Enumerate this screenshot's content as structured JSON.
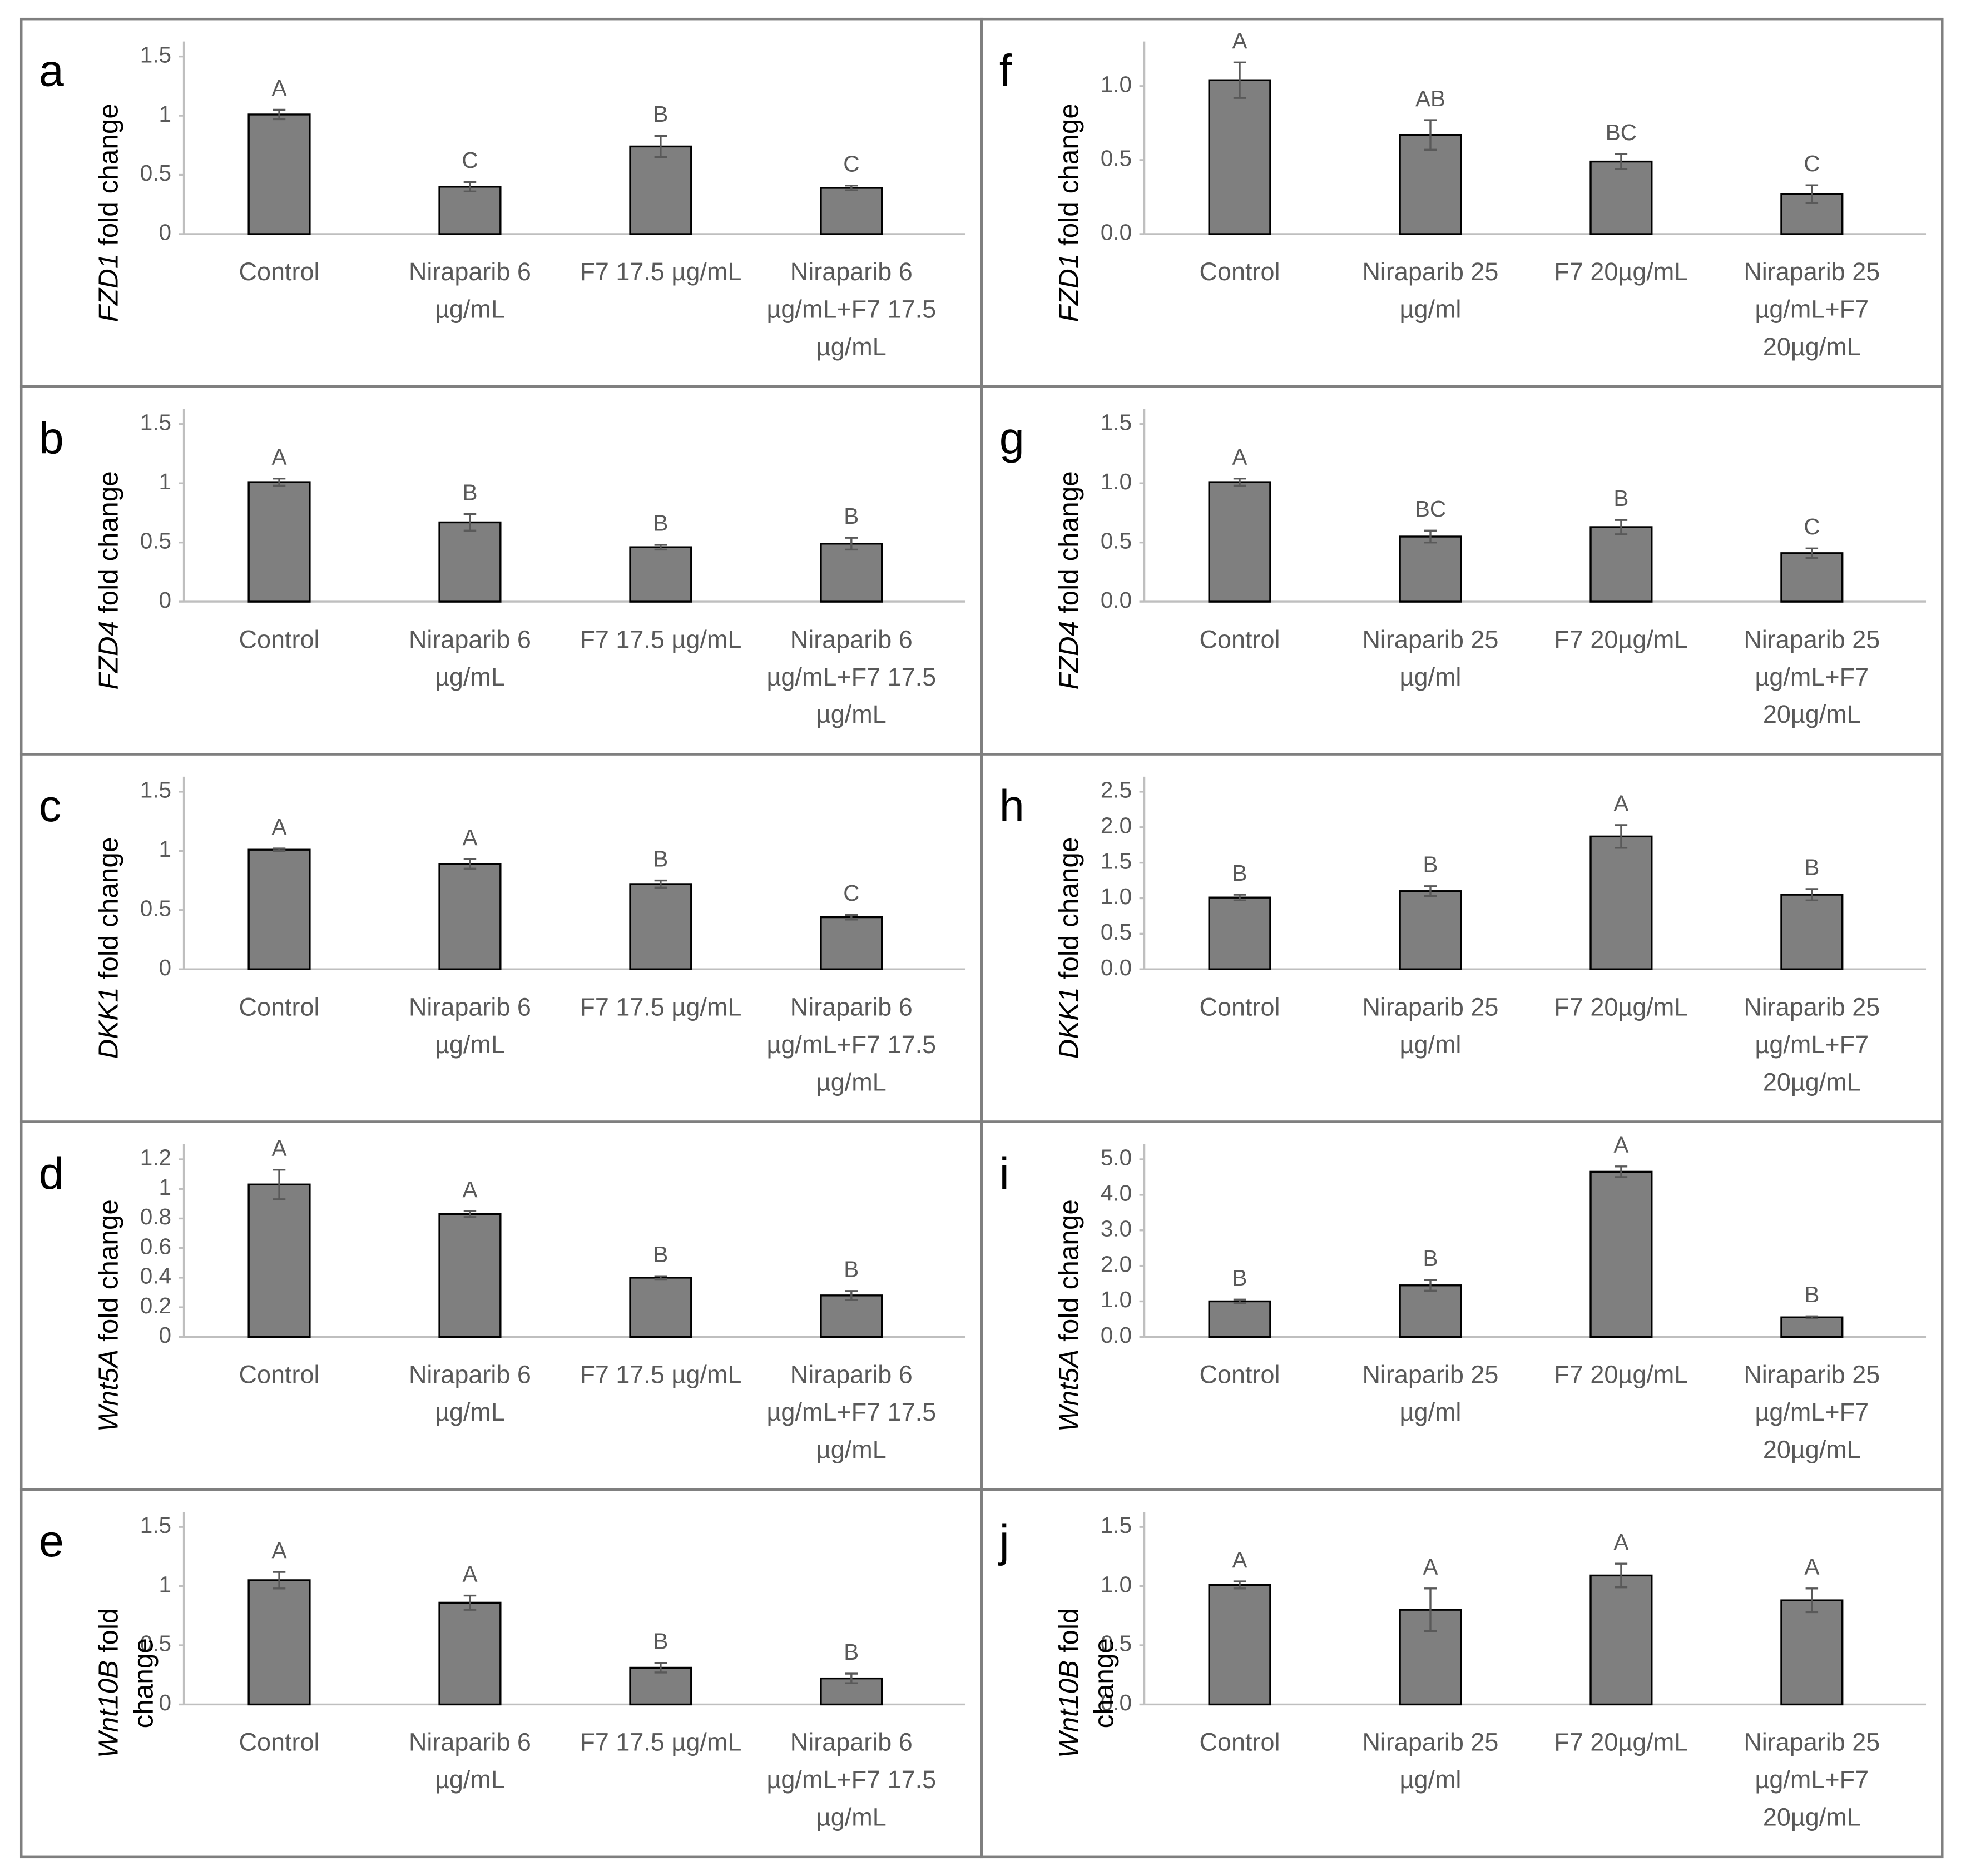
{
  "chart_data": [
    {
      "type": "bar",
      "panel": "a",
      "ylabel_gene": "FZD1",
      "ylabel": "fold change",
      "categories": [
        "Control",
        "Niraparib 6 µg/mL",
        "F7 17.5 µg/mL",
        "Niraparib 6 µg/mL+F7 17.5 µg/mL"
      ],
      "values": [
        1.01,
        0.4,
        0.74,
        0.39
      ],
      "errors": [
        0.04,
        0.04,
        0.09,
        0.02
      ],
      "annotations": [
        "A",
        "C",
        "B",
        "C"
      ],
      "color": "#7f7f7f",
      "ylim": [
        0,
        1.5
      ],
      "yticks": [
        0,
        0.5,
        1,
        1.5
      ]
    },
    {
      "type": "bar",
      "panel": "b",
      "ylabel_gene": "FZD4",
      "ylabel": "fold change",
      "categories": [
        "Control",
        "Niraparib 6 µg/mL",
        "F7 17.5 µg/mL",
        "Niraparib 6 µg/mL+F7 17.5 µg/mL"
      ],
      "values": [
        1.01,
        0.67,
        0.46,
        0.49
      ],
      "errors": [
        0.03,
        0.07,
        0.02,
        0.05
      ],
      "annotations": [
        "A",
        "B",
        "B",
        "B"
      ],
      "color": "#7f7f7f",
      "ylim": [
        0,
        1.5
      ],
      "yticks": [
        0,
        0.5,
        1,
        1.5
      ]
    },
    {
      "type": "bar",
      "panel": "c",
      "ylabel_gene": "DKK1",
      "ylabel": "fold change",
      "categories": [
        "Control",
        "Niraparib 6 µg/mL",
        "F7 17.5 µg/mL",
        "Niraparib 6 µg/mL+F7 17.5 µg/mL"
      ],
      "values": [
        1.01,
        0.89,
        0.72,
        0.44
      ],
      "errors": [
        0.01,
        0.04,
        0.03,
        0.02
      ],
      "annotations": [
        "A",
        "A",
        "B",
        "C"
      ],
      "color": "#7f7f7f",
      "ylim": [
        0,
        1.5
      ],
      "yticks": [
        0,
        0.5,
        1,
        1.5
      ]
    },
    {
      "type": "bar",
      "panel": "d",
      "ylabel_gene": "Wnt5A",
      "ylabel": "fold change",
      "categories": [
        "Control",
        "Niraparib 6 µg/mL",
        "F7 17.5 µg/mL",
        "Niraparib 6 µg/mL+F7 17.5 µg/mL"
      ],
      "values": [
        1.03,
        0.83,
        0.4,
        0.28
      ],
      "errors": [
        0.1,
        0.02,
        0.01,
        0.03
      ],
      "annotations": [
        "A",
        "A",
        "B",
        "B"
      ],
      "color": "#7f7f7f",
      "ylim": [
        0,
        1.2
      ],
      "yticks": [
        0,
        0.2,
        0.4,
        0.6,
        0.8,
        1,
        1.2
      ]
    },
    {
      "type": "bar",
      "panel": "e",
      "ylabel_gene": "Wnt10B",
      "ylabel": "fold change",
      "categories": [
        "Control",
        "Niraparib 6 µg/mL",
        "F7 17.5 µg/mL",
        "Niraparib 6 µg/mL+F7 17.5 µg/mL"
      ],
      "values": [
        1.05,
        0.86,
        0.31,
        0.22
      ],
      "errors": [
        0.07,
        0.06,
        0.04,
        0.04
      ],
      "annotations": [
        "A",
        "A",
        "B",
        "B"
      ],
      "color": "#7f7f7f",
      "ylim": [
        0,
        1.5
      ],
      "yticks": [
        0,
        0.5,
        1,
        1.5
      ]
    },
    {
      "type": "bar",
      "panel": "f",
      "ylabel_gene": "FZD1",
      "ylabel": "fold change",
      "categories": [
        "Control",
        "Niraparib 25 µg/ml",
        "F7 20µg/mL",
        "Niraparib 25 µg/mL+F7 20µg/mL"
      ],
      "values": [
        1.04,
        0.67,
        0.49,
        0.27
      ],
      "errors": [
        0.12,
        0.1,
        0.05,
        0.06
      ],
      "annotations": [
        "A",
        "AB",
        "BC",
        "C"
      ],
      "color": "#7f7f7f",
      "ylim": [
        0,
        1.2
      ],
      "yticks": [
        {
          "value": 0,
          "label": "0.0"
        },
        0.5,
        {
          "value": 1,
          "label": "1.0"
        }
      ]
    },
    {
      "type": "bar",
      "panel": "g",
      "ylabel_gene": "FZD4",
      "ylabel": "fold change",
      "categories": [
        "Control",
        "Niraparib 25 µg/ml",
        "F7 20µg/mL",
        "Niraparib 25 µg/mL+F7 20µg/mL"
      ],
      "values": [
        1.01,
        0.55,
        0.63,
        0.41
      ],
      "errors": [
        0.03,
        0.05,
        0.06,
        0.04
      ],
      "annotations": [
        "A",
        "BC",
        "B",
        "C"
      ],
      "color": "#7f7f7f",
      "ylim": [
        0,
        1.5
      ],
      "yticks": [
        {
          "value": 0,
          "label": "0.0"
        },
        0.5,
        {
          "value": 1,
          "label": "1.0"
        },
        1.5
      ]
    },
    {
      "type": "bar",
      "panel": "h",
      "ylabel_gene": "DKK1",
      "ylabel": "fold change",
      "categories": [
        "Control",
        "Niraparib 25 µg/ml",
        "F7 20µg/mL",
        "Niraparib 25 µg/mL+F7 20µg/mL"
      ],
      "values": [
        1.01,
        1.1,
        1.87,
        1.05
      ],
      "errors": [
        0.04,
        0.07,
        0.16,
        0.08
      ],
      "annotations": [
        "B",
        "B",
        "A",
        "B"
      ],
      "color": "#7f7f7f",
      "ylim": [
        0,
        2.5
      ],
      "yticks": [
        {
          "value": 0,
          "label": "0.0"
        },
        0.5,
        {
          "value": 1,
          "label": "1.0"
        },
        1.5,
        {
          "value": 2,
          "label": "2.0"
        },
        2.5
      ]
    },
    {
      "type": "bar",
      "panel": "i",
      "ylabel_gene": "Wnt5A",
      "ylabel": "fold change",
      "categories": [
        "Control",
        "Niraparib 25 µg/ml",
        "F7 20µg/mL",
        "Niraparib 25 µg/mL+F7 20µg/mL"
      ],
      "values": [
        1.0,
        1.45,
        4.65,
        0.55
      ],
      "errors": [
        0.05,
        0.15,
        0.15,
        0.03
      ],
      "annotations": [
        "B",
        "B",
        "A",
        "B"
      ],
      "color": "#7f7f7f",
      "ylim": [
        0,
        5
      ],
      "yticks": [
        {
          "value": 0,
          "label": "0.0"
        },
        {
          "value": 1,
          "label": "1.0"
        },
        {
          "value": 2,
          "label": "2.0"
        },
        {
          "value": 3,
          "label": "3.0"
        },
        {
          "value": 4,
          "label": "4.0"
        },
        {
          "value": 5,
          "label": "5.0"
        }
      ]
    },
    {
      "type": "bar",
      "panel": "j",
      "ylabel_gene": "Wnt10B",
      "ylabel": "fold change",
      "categories": [
        "Control",
        "Niraparib 25 µg/ml",
        "F7 20µg/mL",
        "Niraparib 25 µg/mL+F7 20µg/mL"
      ],
      "values": [
        1.01,
        0.8,
        1.09,
        0.88
      ],
      "errors": [
        0.03,
        0.18,
        0.1,
        0.1
      ],
      "annotations": [
        "A",
        "A",
        "A",
        "A"
      ],
      "color": "#7f7f7f",
      "ylim": [
        0,
        1.5
      ],
      "yticks": [
        {
          "value": 0,
          "label": "0.0"
        },
        0.5,
        {
          "value": 1,
          "label": "1.0"
        },
        1.5
      ]
    }
  ]
}
